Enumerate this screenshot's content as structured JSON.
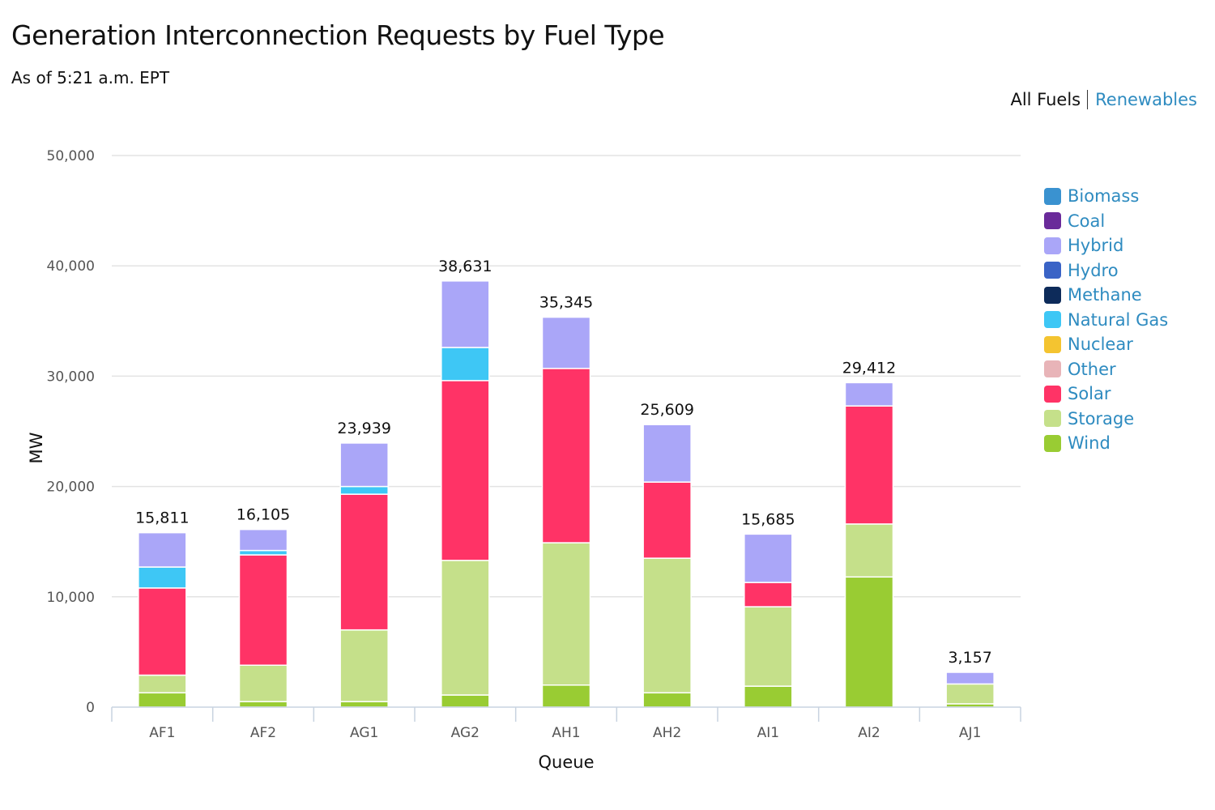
{
  "header": {
    "title": "Generation Interconnection Requests by Fuel Type",
    "subtitle": "As of 5:21 a.m. EPT"
  },
  "toggle": {
    "all_fuels": "All Fuels",
    "renewables": "Renewables",
    "selected": "All Fuels"
  },
  "chart_data": {
    "type": "bar",
    "stacked": true,
    "title": "",
    "xlabel": "Queue",
    "ylabel": "MW",
    "ylim": [
      0,
      50000
    ],
    "yticks": [
      0,
      10000,
      20000,
      30000,
      40000,
      50000
    ],
    "ytick_labels": [
      "0",
      "10,000",
      "20,000",
      "30,000",
      "40,000",
      "50,000"
    ],
    "grid": true,
    "legend_position": "right",
    "categories": [
      "AF1",
      "AF2",
      "AG1",
      "AG2",
      "AH1",
      "AH2",
      "AI1",
      "AI2",
      "AJ1"
    ],
    "totals": [
      15811,
      16105,
      23939,
      38631,
      35345,
      25609,
      15685,
      29412,
      3157
    ],
    "total_labels": [
      "15,811",
      "16,105",
      "23,939",
      "38,631",
      "35,345",
      "25,609",
      "15,685",
      "29,412",
      "3,157"
    ],
    "series": [
      {
        "name": "Wind",
        "color": "#99cc33",
        "values": [
          1300,
          500,
          500,
          1100,
          2000,
          1300,
          1900,
          11800,
          300
        ]
      },
      {
        "name": "Storage",
        "color": "#c5e08a",
        "values": [
          1600,
          3300,
          6500,
          12200,
          12900,
          12200,
          7200,
          4800,
          1800
        ]
      },
      {
        "name": "Other",
        "color": "#e8b4b8",
        "values": [
          0,
          0,
          0,
          0,
          0,
          0,
          0,
          0,
          0
        ]
      },
      {
        "name": "Solar",
        "color": "#ff3366",
        "values": [
          7900,
          10000,
          12300,
          16300,
          15800,
          6900,
          2200,
          10700,
          0
        ]
      },
      {
        "name": "Nuclear",
        "color": "#f4c430",
        "values": [
          0,
          0,
          0,
          0,
          0,
          0,
          0,
          0,
          0
        ]
      },
      {
        "name": "Natural Gas",
        "color": "#3ec7f5",
        "values": [
          1900,
          400,
          700,
          3000,
          0,
          0,
          0,
          0,
          0
        ]
      },
      {
        "name": "Methane",
        "color": "#0d2b5a",
        "values": [
          0,
          0,
          0,
          0,
          0,
          0,
          0,
          0,
          0
        ]
      },
      {
        "name": "Hydro",
        "color": "#3a63c6",
        "values": [
          0,
          0,
          0,
          0,
          0,
          0,
          0,
          0,
          0
        ]
      },
      {
        "name": "Hybrid",
        "color": "#aaa6f8",
        "values": [
          3111,
          1905,
          3939,
          6031,
          4645,
          5209,
          4385,
          2112,
          1057
        ]
      },
      {
        "name": "Coal",
        "color": "#6a2a9a",
        "values": [
          0,
          0,
          0,
          0,
          0,
          0,
          0,
          0,
          0
        ]
      },
      {
        "name": "Biomass",
        "color": "#3a92d0",
        "values": [
          0,
          0,
          0,
          0,
          0,
          0,
          0,
          0,
          0
        ]
      }
    ],
    "legend": [
      {
        "name": "Biomass",
        "color": "#3a92d0"
      },
      {
        "name": "Coal",
        "color": "#6a2a9a"
      },
      {
        "name": "Hybrid",
        "color": "#aaa6f8"
      },
      {
        "name": "Hydro",
        "color": "#3a63c6"
      },
      {
        "name": "Methane",
        "color": "#0d2b5a"
      },
      {
        "name": "Natural Gas",
        "color": "#3ec7f5"
      },
      {
        "name": "Nuclear",
        "color": "#f4c430"
      },
      {
        "name": "Other",
        "color": "#e8b4b8"
      },
      {
        "name": "Solar",
        "color": "#ff3366"
      },
      {
        "name": "Storage",
        "color": "#c5e08a"
      },
      {
        "name": "Wind",
        "color": "#99cc33"
      }
    ]
  }
}
